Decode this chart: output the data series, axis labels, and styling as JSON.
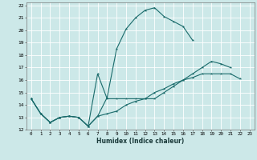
{
  "xlabel": "Humidex (Indice chaleur)",
  "background_color": "#cce8e8",
  "line_color": "#1a6b6b",
  "xlim": [
    -0.5,
    23.5
  ],
  "ylim": [
    12,
    22.2
  ],
  "xticks": [
    0,
    1,
    2,
    3,
    4,
    5,
    6,
    7,
    8,
    9,
    10,
    11,
    12,
    13,
    14,
    15,
    16,
    17,
    18,
    19,
    20,
    21,
    22,
    23
  ],
  "yticks": [
    12,
    13,
    14,
    15,
    16,
    17,
    18,
    19,
    20,
    21,
    22
  ],
  "line1_y": [
    14.5,
    13.3,
    12.6,
    13.0,
    13.1,
    13.0,
    12.3,
    13.1,
    14.6,
    18.5,
    20.1,
    21.0,
    21.6,
    21.8,
    21.1,
    20.7,
    20.3,
    19.2,
    null,
    null,
    null,
    null,
    null,
    null
  ],
  "line2_y": [
    14.5,
    13.3,
    12.6,
    13.0,
    13.1,
    13.0,
    12.3,
    16.5,
    14.5,
    14.5,
    14.5,
    14.5,
    14.5,
    14.5,
    15.0,
    15.5,
    16.0,
    16.5,
    17.0,
    17.5,
    17.3,
    17.0,
    null,
    null
  ],
  "line3_y": [
    14.5,
    13.3,
    12.6,
    13.0,
    13.1,
    13.0,
    12.3,
    13.1,
    13.3,
    13.5,
    14.0,
    14.3,
    14.5,
    15.0,
    15.3,
    15.7,
    16.0,
    16.2,
    16.5,
    16.5,
    16.5,
    16.5,
    16.1,
    null
  ]
}
